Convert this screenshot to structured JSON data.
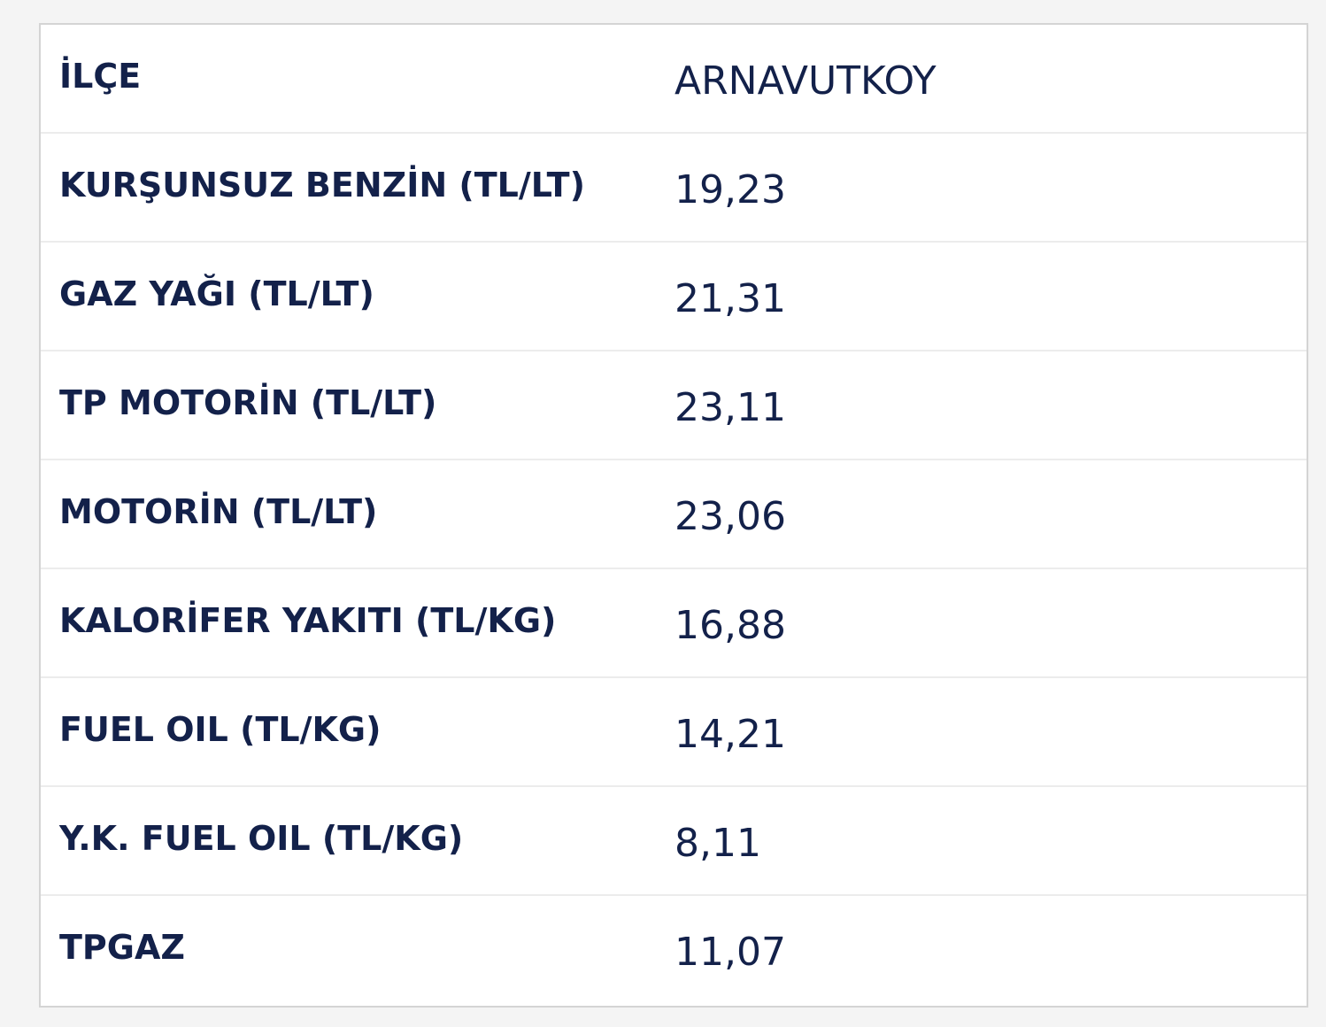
{
  "table": {
    "rows": [
      [
        "İLÇE",
        "ARNAVUTKOY"
      ],
      [
        "KURŞUNSUZ BENZİN (TL/LT)",
        "19,23"
      ],
      [
        "GAZ YAĞI (TL/LT)",
        "21,31"
      ],
      [
        "TP MOTORİN (TL/LT)",
        "23,11"
      ],
      [
        "MOTORİN (TL/LT)",
        "23,06"
      ],
      [
        "KALORİFER YAKITI (TL/KG)",
        "16,88"
      ],
      [
        "FUEL OIL (TL/KG)",
        "14,21"
      ],
      [
        "Y.K. FUEL OIL (TL/KG)",
        "8,11"
      ],
      [
        "TPGAZ",
        "11,07"
      ]
    ]
  }
}
